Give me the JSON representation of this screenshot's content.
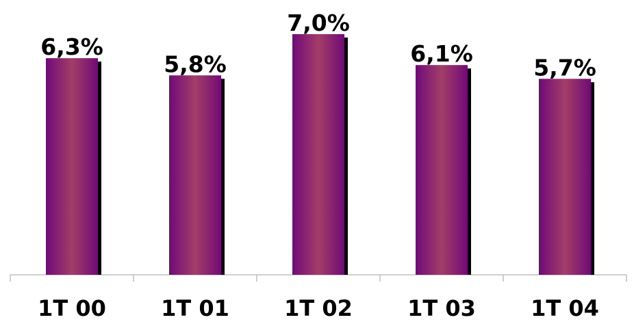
{
  "chart_data": {
    "type": "bar",
    "categories": [
      "1T 00",
      "1T 01",
      "1T 02",
      "1T 03",
      "1T 04"
    ],
    "values": [
      6.3,
      5.8,
      7.0,
      6.1,
      5.7
    ],
    "value_labels": [
      "6,3%",
      "5,8%",
      "7,0%",
      "6,1%",
      "5,7%"
    ],
    "title": "",
    "xlabel": "",
    "ylabel": "",
    "ylim": [
      0,
      7.5
    ],
    "grid": false,
    "legend": "none",
    "colors": {
      "bar_edge": "#7a0f78",
      "bar_center": "#a0406a",
      "shadow": "#000000",
      "axis": "#bfbfbf",
      "text": "#000000"
    }
  }
}
